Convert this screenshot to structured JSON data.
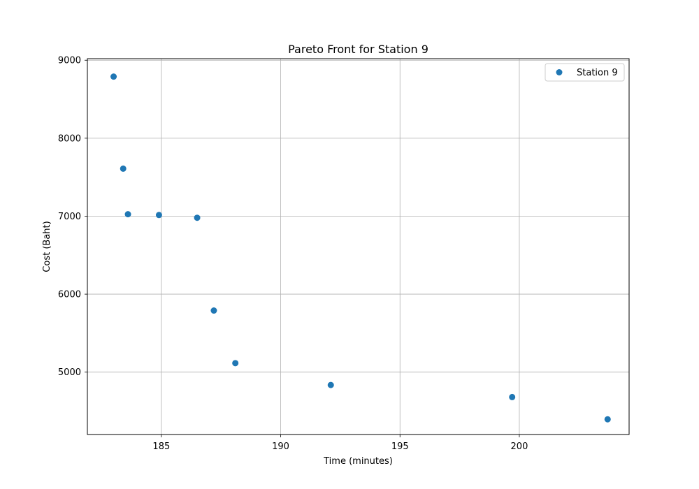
{
  "chart_data": {
    "type": "scatter",
    "title": "Pareto Front for Station 9",
    "xlabel": "Time (minutes)",
    "ylabel": "Cost (Baht)",
    "xlim": [
      181.9,
      204.6
    ],
    "ylim": [
      4200,
      9020
    ],
    "xticks": [
      185,
      190,
      195,
      200
    ],
    "yticks": [
      5000,
      6000,
      7000,
      8000,
      9000
    ],
    "grid": true,
    "legend_position": "top-right",
    "series": [
      {
        "name": "Station 9",
        "color": "#1f77b4",
        "points": [
          {
            "x": 183.0,
            "y": 8790
          },
          {
            "x": 183.4,
            "y": 7610
          },
          {
            "x": 183.6,
            "y": 7025
          },
          {
            "x": 184.9,
            "y": 7015
          },
          {
            "x": 186.5,
            "y": 6980
          },
          {
            "x": 187.2,
            "y": 5790
          },
          {
            "x": 188.1,
            "y": 5115
          },
          {
            "x": 192.1,
            "y": 4835
          },
          {
            "x": 199.7,
            "y": 4680
          },
          {
            "x": 203.7,
            "y": 4395
          }
        ]
      }
    ]
  }
}
